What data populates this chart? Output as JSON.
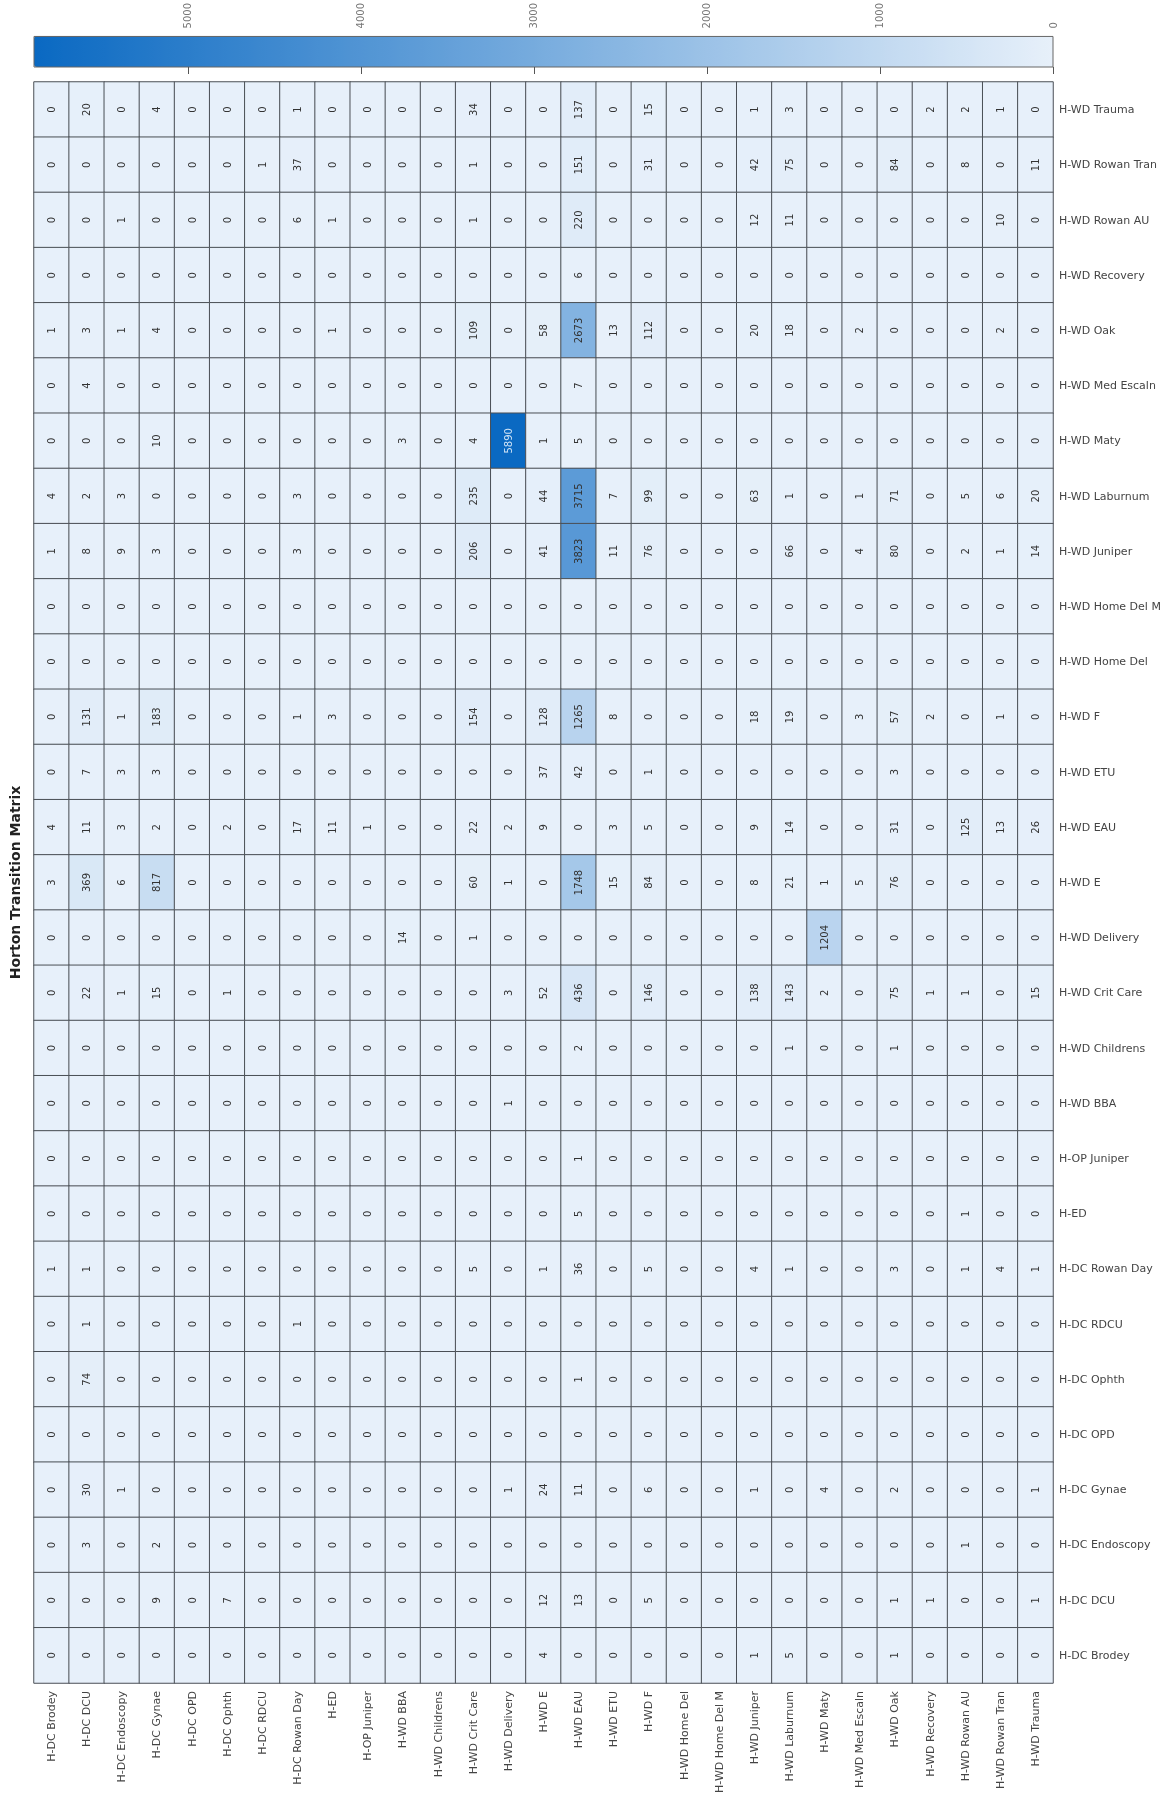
{
  "chart_data": {
    "type": "heatmap",
    "title": "Horton Transition Matrix",
    "categories": [
      "H-DC Brodey",
      "H-DC DCU",
      "H-DC Endoscopy",
      "H-DC Gynae",
      "H-DC OPD",
      "H-DC Ophth",
      "H-DC RDCU",
      "H-DC Rowan Day",
      "H-ED",
      "H-OP Juniper",
      "H-WD BBA",
      "H-WD Childrens",
      "H-WD Crit Care",
      "H-WD Delivery",
      "H-WD E",
      "H-WD EAU",
      "H-WD ETU",
      "H-WD F",
      "H-WD Home Del",
      "H-WD Home Del M",
      "H-WD Juniper",
      "H-WD Laburnum",
      "H-WD Maty",
      "H-WD Med Escaln",
      "H-WD Oak",
      "H-WD Recovery",
      "H-WD Rowan AU",
      "H-WD Rowan Tran",
      "H-WD Trauma"
    ],
    "y_categories": [
      "H-WD Trauma",
      "H-WD Rowan Tran",
      "H-WD Rowan AU",
      "H-WD Recovery",
      "H-WD Oak",
      "H-WD Med Escaln",
      "H-WD Maty",
      "H-WD Laburnum",
      "H-WD Juniper",
      "H-WD Home Del M",
      "H-WD Home Del",
      "H-WD F",
      "H-WD ETU",
      "H-WD EAU",
      "H-WD E",
      "H-WD Delivery",
      "H-WD Crit Care",
      "H-WD Childrens",
      "H-WD BBA",
      "H-OP Juniper",
      "H-ED",
      "H-DC Rowan Day",
      "H-DC RDCU",
      "H-DC Ophth",
      "H-DC OPD",
      "H-DC Gynae",
      "H-DC Endoscopy",
      "H-DC DCU",
      "H-DC Brodey"
    ],
    "cells": [
      [
        0,
        20,
        0,
        4,
        0,
        0,
        0,
        1,
        0,
        0,
        0,
        0,
        34,
        0,
        0,
        137,
        0,
        15,
        0,
        0,
        1,
        3,
        0,
        0,
        0,
        2,
        2,
        1,
        0
      ],
      [
        0,
        0,
        0,
        0,
        0,
        0,
        1,
        37,
        0,
        0,
        0,
        0,
        1,
        0,
        0,
        151,
        0,
        31,
        0,
        0,
        42,
        75,
        0,
        0,
        84,
        0,
        8,
        0,
        11
      ],
      [
        0,
        0,
        1,
        0,
        0,
        0,
        0,
        6,
        1,
        0,
        0,
        0,
        1,
        0,
        0,
        220,
        0,
        0,
        0,
        0,
        12,
        11,
        0,
        0,
        0,
        0,
        0,
        10,
        0
      ],
      [
        0,
        0,
        0,
        0,
        0,
        0,
        0,
        0,
        0,
        0,
        0,
        0,
        0,
        0,
        0,
        6,
        0,
        0,
        0,
        0,
        0,
        0,
        0,
        0,
        0,
        0,
        0,
        0,
        0
      ],
      [
        1,
        3,
        1,
        4,
        0,
        0,
        0,
        0,
        1,
        0,
        0,
        0,
        109,
        0,
        58,
        2673,
        13,
        112,
        0,
        0,
        20,
        18,
        0,
        2,
        0,
        0,
        0,
        2,
        0
      ],
      [
        0,
        4,
        0,
        0,
        0,
        0,
        0,
        0,
        0,
        0,
        0,
        0,
        0,
        0,
        0,
        7,
        0,
        0,
        0,
        0,
        0,
        0,
        0,
        0,
        0,
        0,
        0,
        0,
        0
      ],
      [
        0,
        0,
        0,
        10,
        0,
        0,
        0,
        0,
        0,
        0,
        3,
        0,
        4,
        5890,
        1,
        5,
        0,
        0,
        0,
        0,
        0,
        0,
        0,
        0,
        0,
        0,
        0,
        0,
        0
      ],
      [
        4,
        2,
        3,
        0,
        0,
        0,
        0,
        3,
        0,
        0,
        0,
        0,
        235,
        0,
        44,
        3715,
        7,
        99,
        0,
        0,
        63,
        1,
        0,
        1,
        71,
        0,
        5,
        6,
        20
      ],
      [
        1,
        8,
        9,
        3,
        0,
        0,
        0,
        3,
        0,
        0,
        0,
        0,
        206,
        0,
        41,
        3823,
        11,
        76,
        0,
        0,
        0,
        66,
        0,
        4,
        80,
        0,
        2,
        1,
        14
      ],
      [
        0,
        0,
        0,
        0,
        0,
        0,
        0,
        0,
        0,
        0,
        0,
        0,
        0,
        0,
        0,
        0,
        0,
        0,
        0,
        0,
        0,
        0,
        0,
        0,
        0,
        0,
        0,
        0,
        0
      ],
      [
        0,
        0,
        0,
        0,
        0,
        0,
        0,
        0,
        0,
        0,
        0,
        0,
        0,
        0,
        0,
        0,
        0,
        0,
        0,
        0,
        0,
        0,
        0,
        0,
        0,
        0,
        0,
        0,
        0
      ],
      [
        0,
        131,
        1,
        183,
        0,
        0,
        0,
        1,
        3,
        0,
        0,
        0,
        154,
        0,
        128,
        1265,
        8,
        0,
        0,
        0,
        18,
        19,
        0,
        3,
        57,
        2,
        0,
        1,
        0
      ],
      [
        0,
        7,
        3,
        3,
        0,
        0,
        0,
        0,
        0,
        0,
        0,
        0,
        0,
        0,
        37,
        42,
        0,
        1,
        0,
        0,
        0,
        0,
        0,
        0,
        3,
        0,
        0,
        0,
        0
      ],
      [
        4,
        11,
        3,
        2,
        0,
        2,
        0,
        17,
        11,
        1,
        0,
        0,
        22,
        2,
        9,
        0,
        3,
        5,
        0,
        0,
        9,
        14,
        0,
        0,
        31,
        0,
        125,
        13,
        26
      ],
      [
        3,
        369,
        6,
        817,
        0,
        0,
        0,
        0,
        0,
        0,
        0,
        0,
        60,
        1,
        0,
        1748,
        15,
        84,
        0,
        0,
        8,
        21,
        1,
        5,
        76,
        0,
        0,
        0,
        0
      ],
      [
        0,
        0,
        0,
        0,
        0,
        0,
        0,
        0,
        0,
        0,
        14,
        0,
        1,
        0,
        0,
        0,
        0,
        0,
        0,
        0,
        0,
        0,
        1204,
        0,
        0,
        0,
        0,
        0,
        0
      ],
      [
        0,
        22,
        1,
        15,
        0,
        1,
        0,
        0,
        0,
        0,
        0,
        0,
        0,
        3,
        52,
        436,
        0,
        146,
        0,
        0,
        138,
        143,
        2,
        0,
        75,
        1,
        1,
        0,
        15
      ],
      [
        0,
        0,
        0,
        0,
        0,
        0,
        0,
        0,
        0,
        0,
        0,
        0,
        0,
        0,
        0,
        2,
        0,
        0,
        0,
        0,
        0,
        1,
        0,
        0,
        1,
        0,
        0,
        0,
        0
      ],
      [
        0,
        0,
        0,
        0,
        0,
        0,
        0,
        0,
        0,
        0,
        0,
        0,
        0,
        1,
        0,
        0,
        0,
        0,
        0,
        0,
        0,
        0,
        0,
        0,
        0,
        0,
        0,
        0,
        0
      ],
      [
        0,
        0,
        0,
        0,
        0,
        0,
        0,
        0,
        0,
        0,
        0,
        0,
        0,
        0,
        0,
        1,
        0,
        0,
        0,
        0,
        0,
        0,
        0,
        0,
        0,
        0,
        0,
        0,
        0
      ],
      [
        0,
        0,
        0,
        0,
        0,
        0,
        0,
        0,
        0,
        0,
        0,
        0,
        0,
        0,
        0,
        5,
        0,
        0,
        0,
        0,
        0,
        0,
        0,
        0,
        0,
        0,
        1,
        0,
        0
      ],
      [
        1,
        1,
        0,
        0,
        0,
        0,
        0,
        0,
        0,
        0,
        0,
        0,
        5,
        0,
        1,
        36,
        0,
        5,
        0,
        0,
        4,
        1,
        0,
        0,
        3,
        0,
        1,
        4,
        1
      ],
      [
        0,
        1,
        0,
        0,
        0,
        0,
        0,
        1,
        0,
        0,
        0,
        0,
        0,
        0,
        0,
        0,
        0,
        0,
        0,
        0,
        0,
        0,
        0,
        0,
        0,
        0,
        0,
        0,
        0
      ],
      [
        0,
        74,
        0,
        0,
        0,
        0,
        0,
        0,
        0,
        0,
        0,
        0,
        0,
        0,
        0,
        1,
        0,
        0,
        0,
        0,
        0,
        0,
        0,
        0,
        0,
        0,
        0,
        0,
        0
      ],
      [
        0,
        0,
        0,
        0,
        0,
        0,
        0,
        0,
        0,
        0,
        0,
        0,
        0,
        0,
        0,
        0,
        0,
        0,
        0,
        0,
        0,
        0,
        0,
        0,
        0,
        0,
        0,
        0,
        0
      ],
      [
        0,
        30,
        1,
        0,
        0,
        0,
        0,
        0,
        0,
        0,
        0,
        0,
        0,
        1,
        24,
        11,
        0,
        6,
        0,
        0,
        1,
        0,
        4,
        0,
        2,
        0,
        0,
        0,
        1
      ],
      [
        0,
        3,
        0,
        2,
        0,
        0,
        0,
        0,
        0,
        0,
        0,
        0,
        0,
        0,
        0,
        0,
        0,
        0,
        0,
        0,
        0,
        0,
        0,
        0,
        0,
        0,
        1,
        0,
        0
      ],
      [
        0,
        0,
        0,
        9,
        0,
        7,
        0,
        0,
        0,
        0,
        0,
        0,
        0,
        0,
        12,
        13,
        0,
        5,
        0,
        0,
        0,
        0,
        0,
        0,
        1,
        1,
        0,
        0,
        1
      ],
      [
        0,
        0,
        0,
        0,
        0,
        0,
        0,
        0,
        0,
        0,
        0,
        0,
        0,
        0,
        4,
        0,
        0,
        0,
        0,
        0,
        1,
        5,
        0,
        0,
        1,
        0,
        0,
        0,
        0
      ]
    ],
    "clim": [
      0,
      5890
    ],
    "cticks": [
      0,
      1000,
      2000,
      3000,
      4000,
      5000
    ],
    "data_labels": true
  }
}
